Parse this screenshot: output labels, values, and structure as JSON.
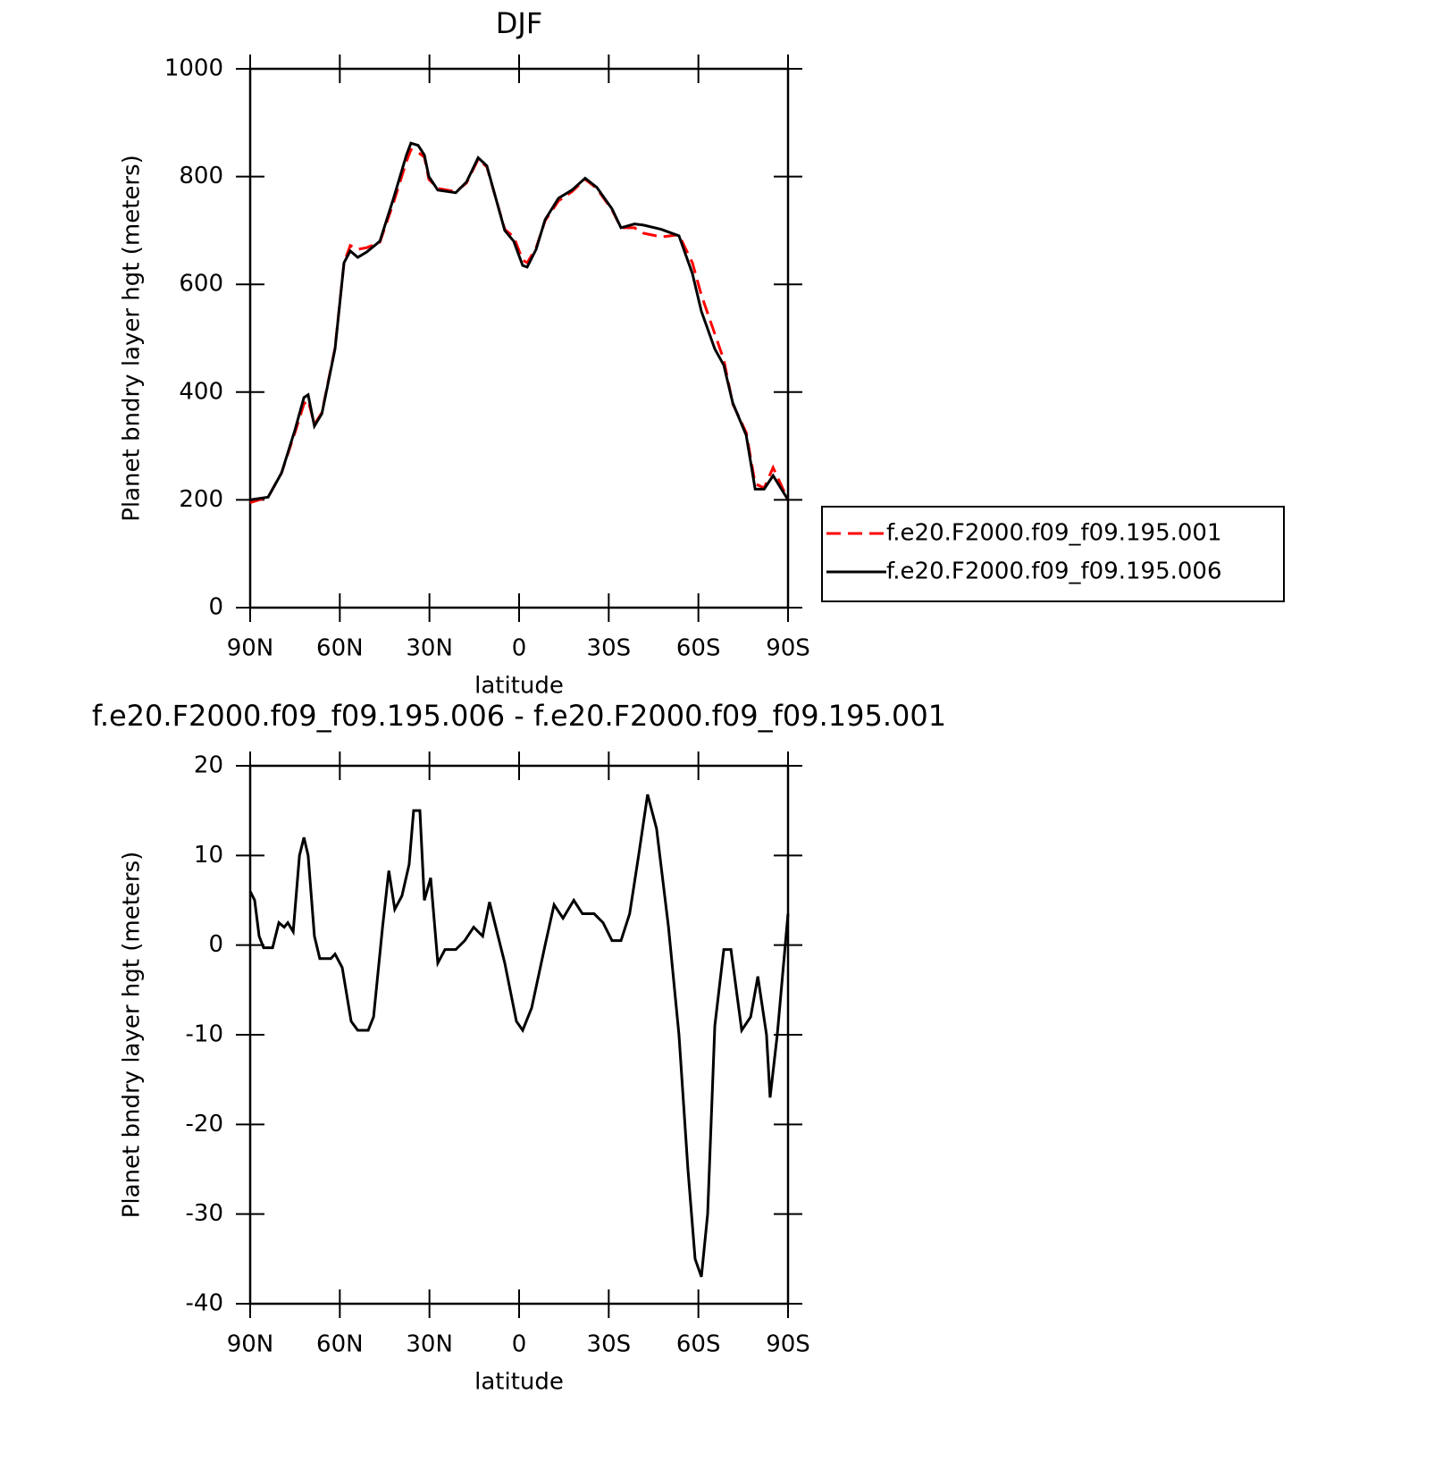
{
  "chart_data": [
    {
      "type": "line",
      "title": "DJF",
      "y_label": "Planet bndry layer hgt (meters)",
      "x_label": "latitude",
      "x": [
        90,
        84,
        79.5,
        75,
        72,
        70.6,
        68.5,
        66,
        61.6,
        58.6,
        56.5,
        54,
        51,
        46.6,
        42,
        37.7,
        36.2,
        33.8,
        31.7,
        30.2,
        27.2,
        21.2,
        17.6,
        13.7,
        10.8,
        7.8,
        4.8,
        1.8,
        -1.2,
        -2.7,
        -5.7,
        -8.7,
        -13.2,
        -17.7,
        -22.1,
        -26,
        -31.1,
        -34.1,
        -38.6,
        -41.6,
        -47.6,
        -53.5,
        -58,
        -61,
        -65.5,
        -68.5,
        -71.5,
        -76,
        -79,
        -82,
        -85,
        -90
      ],
      "series": [
        {
          "name": "f.e20.F2000.f09_f09.195.001",
          "color": "#ff0000",
          "style": "dashed",
          "values": [
            195,
            205,
            250,
            325,
            378,
            385,
            340,
            362,
            482,
            640,
            672,
            665,
            668,
            678,
            752,
            828,
            850,
            845,
            836,
            795,
            778,
            772,
            788,
            832,
            818,
            760,
            702,
            688,
            645,
            640,
            668,
            718,
            755,
            772,
            795,
            778,
            738,
            705,
            705,
            695,
            688,
            692,
            640,
            580,
            508,
            460,
            378,
            325,
            230,
            222,
            260,
            200
          ]
        },
        {
          "name": "f.e20.F2000.f09_f09.195.006",
          "color": "#000000",
          "style": "solid",
          "values": [
            200,
            205,
            250,
            330,
            390,
            395,
            337,
            360,
            480,
            640,
            662,
            650,
            660,
            680,
            760,
            840,
            862,
            858,
            840,
            800,
            775,
            770,
            790,
            835,
            820,
            760,
            700,
            680,
            635,
            632,
            665,
            720,
            760,
            775,
            797,
            780,
            740,
            705,
            712,
            710,
            702,
            690,
            620,
            550,
            480,
            450,
            380,
            320,
            220,
            220,
            245,
            200
          ]
        }
      ],
      "xlim": [
        90,
        -90
      ],
      "xticks": [
        {
          "value": 90,
          "label": "90N"
        },
        {
          "value": 60,
          "label": "60N"
        },
        {
          "value": 30,
          "label": "30N"
        },
        0,
        {
          "value": -30,
          "label": "30S"
        },
        {
          "value": -60,
          "label": "60S"
        },
        {
          "value": -90,
          "label": "90S"
        }
      ],
      "ylim": [
        0,
        1000
      ],
      "yticks": [
        0,
        200,
        400,
        600,
        800,
        1000
      ],
      "legend": "right"
    },
    {
      "type": "line",
      "title": "f.e20.F2000.f09_f09.195.006 - f.e20.F2000.f09_f09.195.001",
      "y_label": "Planet bndry layer hgt (meters)",
      "x_label": "latitude",
      "x": [
        90,
        88.5,
        87,
        85.5,
        82.5,
        80.4,
        78.6,
        77.4,
        75.6,
        73.5,
        72,
        70.6,
        68.5,
        66.7,
        63,
        61.6,
        59.2,
        56.2,
        54,
        50.5,
        48.7,
        45.7,
        43.6,
        41.6,
        39.2,
        36.8,
        35.3,
        33.2,
        31.7,
        29.6,
        27.2,
        24.8,
        21.2,
        18.2,
        15.2,
        12.2,
        9.9,
        7.8,
        4.8,
        0.9,
        -1.2,
        -4.2,
        -8.7,
        -11.7,
        -14.7,
        -18.3,
        -21.2,
        -25.1,
        -28.1,
        -31.1,
        -34.1,
        -37,
        -40,
        -43,
        -46,
        -50,
        -53.5,
        -56.5,
        -58.9,
        -61,
        -63.1,
        -65.5,
        -68.5,
        -70.9,
        -74.5,
        -77.5,
        -79.9,
        -82.8,
        -84,
        -86.4,
        -88.8,
        -90
      ],
      "color": "#000000",
      "values": [
        6,
        5,
        1,
        -0.3,
        -0.3,
        2.5,
        2,
        2.5,
        1.5,
        10,
        12,
        10,
        1,
        -1.5,
        -1.5,
        -1,
        -2.5,
        -8.5,
        -9.5,
        -9.5,
        -8,
        2,
        8.3,
        4,
        5.5,
        9,
        15,
        15,
        5,
        7.5,
        -2,
        -0.5,
        -0.5,
        0.5,
        2,
        1,
        4.8,
        2,
        -2,
        -8.5,
        -9.5,
        -7,
        0,
        4.5,
        3,
        5,
        3.5,
        3.5,
        2.5,
        0.5,
        0.5,
        3.5,
        10,
        16.8,
        13,
        2,
        -10,
        -25,
        -35,
        -37,
        -30,
        -9,
        -0.5,
        -0.5,
        -9.5,
        -8,
        -3.5,
        -10,
        -17,
        -10,
        -1,
        3.5
      ],
      "xlim": [
        90,
        -90
      ],
      "xticks": [
        {
          "value": 90,
          "label": "90N"
        },
        {
          "value": 60,
          "label": "60N"
        },
        {
          "value": 30,
          "label": "30N"
        },
        0,
        {
          "value": -30,
          "label": "30S"
        },
        {
          "value": -60,
          "label": "60S"
        },
        {
          "value": -90,
          "label": "90S"
        }
      ],
      "ylim": [
        -40,
        20
      ],
      "yticks": [
        -40,
        -30,
        -20,
        -10,
        0,
        10,
        20
      ]
    }
  ]
}
